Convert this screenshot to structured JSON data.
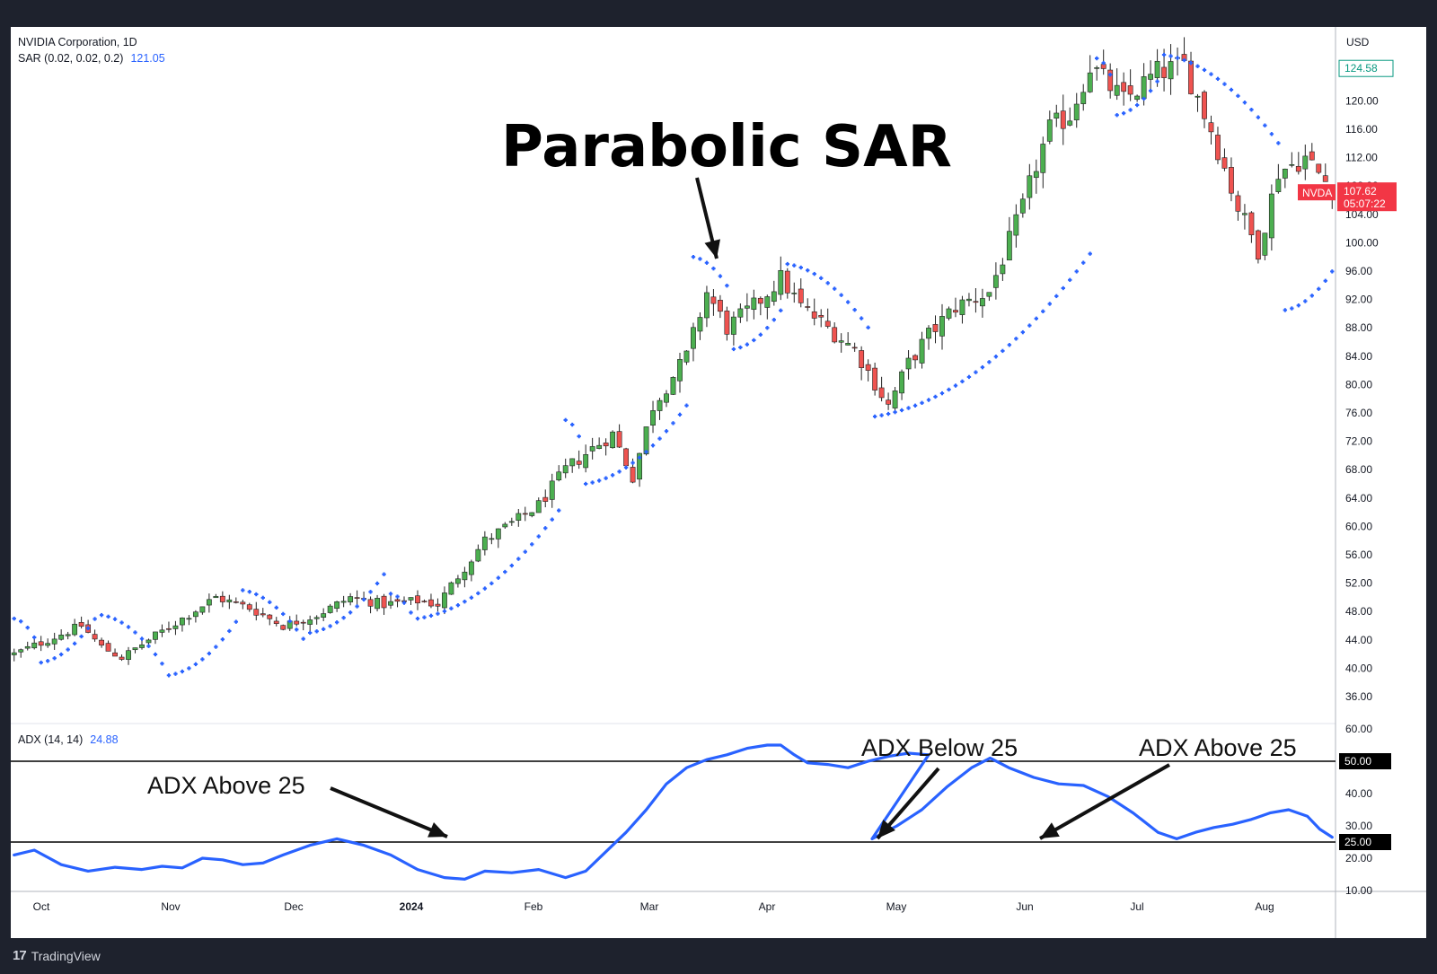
{
  "legend": {
    "symbol": "NVIDIA Corporation, 1D",
    "sar_label": "SAR (0.02, 0.02, 0.2)",
    "sar_value": "121.05",
    "adx_label": "ADX (14, 14)",
    "adx_value": "24.88"
  },
  "footer": {
    "brand": "TradingView"
  },
  "chart_data": [
    {
      "type": "candlestick",
      "title": "",
      "currency": "USD",
      "x_tick_labels": [
        "Oct",
        "Nov",
        "Dec",
        "2024",
        "Feb",
        "Mar",
        "Apr",
        "May",
        "Jun",
        "Jul",
        "Aug"
      ],
      "y_tick_labels": [
        "36.00",
        "40.00",
        "44.00",
        "48.00",
        "52.00",
        "56.00",
        "60.00",
        "64.00",
        "68.00",
        "72.00",
        "76.00",
        "80.00",
        "84.00",
        "88.00",
        "92.00",
        "96.00",
        "100.00",
        "104.00",
        "108.00",
        "112.00",
        "116.00",
        "120.00"
      ],
      "ylim": [
        32,
        127
      ],
      "price_badges": [
        {
          "value": "124.58",
          "color": "#089981",
          "style": "outline"
        },
        {
          "ticker": "NVDA",
          "value": "107.62",
          "countdown": "05:07:22",
          "color": "#f23645",
          "style": "filled"
        }
      ],
      "sar_color": "#2962ff",
      "up_color": "#4caf50",
      "down_color": "#ef5350",
      "close_path": [
        [
          0,
          42
        ],
        [
          5,
          44
        ],
        [
          10,
          46
        ],
        [
          13,
          43
        ],
        [
          16,
          41.5
        ],
        [
          20,
          44
        ],
        [
          25,
          47
        ],
        [
          30,
          50
        ],
        [
          35,
          48.5
        ],
        [
          40,
          46
        ],
        [
          45,
          47.5
        ],
        [
          50,
          50
        ],
        [
          55,
          49
        ],
        [
          60,
          49.5
        ],
        [
          63,
          49
        ],
        [
          66,
          53
        ],
        [
          70,
          58
        ],
        [
          75,
          61
        ],
        [
          78,
          63
        ],
        [
          82,
          68
        ],
        [
          86,
          71
        ],
        [
          89,
          73
        ],
        [
          92,
          67
        ],
        [
          95,
          77
        ],
        [
          100,
          84
        ],
        [
          103,
          93
        ],
        [
          106,
          88
        ],
        [
          110,
          91
        ],
        [
          114,
          95
        ],
        [
          117,
          91
        ],
        [
          121,
          88
        ],
        [
          125,
          85
        ],
        [
          130,
          77
        ],
        [
          133,
          83
        ],
        [
          136,
          87
        ],
        [
          140,
          91
        ],
        [
          145,
          93
        ],
        [
          150,
          105
        ],
        [
          152,
          111
        ],
        [
          154,
          116
        ],
        [
          157,
          118
        ],
        [
          160,
          125
        ],
        [
          165,
          120
        ],
        [
          170,
          124
        ],
        [
          174,
          125
        ],
        [
          178,
          116
        ],
        [
          182,
          105
        ],
        [
          185,
          99
        ],
        [
          188,
          110
        ],
        [
          192,
          112
        ],
        [
          196,
          107.6
        ]
      ],
      "sar_segments": [
        {
          "from": 0,
          "to": 3,
          "start": 47,
          "dir": "down"
        },
        {
          "from": 4,
          "to": 12,
          "start": 40.8,
          "dir": "up"
        },
        {
          "from": 13,
          "to": 22,
          "start": 47.5,
          "dir": "down"
        },
        {
          "from": 23,
          "to": 33,
          "start": 39,
          "dir": "up"
        },
        {
          "from": 34,
          "to": 43,
          "start": 51,
          "dir": "down"
        },
        {
          "from": 44,
          "to": 55,
          "start": 45,
          "dir": "up"
        },
        {
          "from": 56,
          "to": 59,
          "start": 50.5,
          "dir": "down"
        },
        {
          "from": 60,
          "to": 81,
          "start": 47,
          "dir": "up"
        },
        {
          "from": 82,
          "to": 84,
          "start": 75,
          "dir": "down"
        },
        {
          "from": 85,
          "to": 100,
          "start": 66,
          "dir": "up"
        },
        {
          "from": 101,
          "to": 106,
          "start": 98,
          "dir": "down"
        },
        {
          "from": 107,
          "to": 114,
          "start": 85,
          "dir": "up"
        },
        {
          "from": 115,
          "to": 127,
          "start": 97,
          "dir": "down"
        },
        {
          "from": 128,
          "to": 160,
          "start": 75.5,
          "dir": "up"
        },
        {
          "from": 161,
          "to": 163,
          "start": 126,
          "dir": "down"
        },
        {
          "from": 164,
          "to": 170,
          "start": 118,
          "dir": "up"
        },
        {
          "from": 171,
          "to": 188,
          "start": 126.5,
          "dir": "down"
        },
        {
          "from": 189,
          "to": 196,
          "start": 90.5,
          "dir": "up"
        }
      ]
    },
    {
      "type": "line",
      "title": "",
      "y_tick_labels": [
        "10.00",
        "20.00",
        "30.00",
        "40.00",
        "50.00",
        "60.00"
      ],
      "ylim": [
        9,
        60.5
      ],
      "reference_lines": [
        {
          "value": 50,
          "label": "50.00"
        },
        {
          "value": 25,
          "label": "25.00"
        }
      ],
      "line_color": "#2962ff",
      "adx_path": [
        [
          0,
          21
        ],
        [
          3,
          22.5
        ],
        [
          7,
          18
        ],
        [
          11,
          16
        ],
        [
          15,
          17.2
        ],
        [
          19,
          16.5
        ],
        [
          22,
          17.5
        ],
        [
          25,
          17
        ],
        [
          28,
          20
        ],
        [
          31,
          19.5
        ],
        [
          34,
          18
        ],
        [
          37,
          18.5
        ],
        [
          40,
          21
        ],
        [
          44,
          24
        ],
        [
          48,
          26
        ],
        [
          52,
          24
        ],
        [
          56,
          21
        ],
        [
          60,
          16.5
        ],
        [
          64,
          14
        ],
        [
          67,
          13.5
        ],
        [
          70,
          16
        ],
        [
          74,
          15.5
        ],
        [
          78,
          16.5
        ],
        [
          82,
          14
        ],
        [
          85,
          16
        ],
        [
          88,
          22
        ],
        [
          91,
          28
        ],
        [
          94,
          35
        ],
        [
          97,
          43
        ],
        [
          100,
          48
        ],
        [
          103,
          50.5
        ],
        [
          106,
          52
        ],
        [
          109,
          54
        ],
        [
          112,
          55
        ],
        [
          114,
          55
        ],
        [
          116,
          52
        ],
        [
          118,
          49.5
        ],
        [
          121,
          49
        ],
        [
          124,
          48
        ],
        [
          127,
          50
        ],
        [
          130,
          51.5
        ],
        [
          133,
          52.5
        ],
        [
          136,
          52
        ],
        [
          139,
          51
        ],
        [
          142,
          51.5
        ],
        [
          145,
          49
        ],
        [
          148,
          44
        ],
        [
          151,
          38
        ],
        [
          154,
          32
        ],
        [
          157,
          27
        ],
        [
          160,
          25
        ],
        [
          162,
          25.8
        ],
        [
          165,
          24
        ],
        [
          168,
          21
        ],
        [
          171,
          18.5
        ],
        [
          174,
          17
        ],
        [
          177,
          15
        ],
        [
          180,
          13.5
        ],
        [
          183,
          14.5
        ],
        [
          186,
          14
        ],
        [
          189,
          20
        ],
        [
          192,
          26
        ]
      ],
      "adx_path_2": [
        [
          138,
          26
        ],
        [
          142,
          30
        ],
        [
          146,
          35
        ],
        [
          150,
          42
        ],
        [
          154,
          48
        ],
        [
          157,
          51
        ],
        [
          160,
          48
        ],
        [
          164,
          45
        ],
        [
          168,
          43
        ],
        [
          172,
          42.5
        ],
        [
          176,
          39
        ],
        [
          180,
          34
        ],
        [
          184,
          28
        ],
        [
          187,
          26
        ],
        [
          190,
          28
        ],
        [
          193,
          29.5
        ],
        [
          196,
          30.5
        ],
        [
          199,
          32
        ],
        [
          202,
          34
        ],
        [
          205,
          35
        ],
        [
          208,
          33
        ],
        [
          210,
          29
        ],
        [
          212,
          26.5
        ]
      ]
    }
  ],
  "annotations": {
    "parabolic_sar": "Parabolic SAR",
    "adx_above_left": "ADX Above 25",
    "adx_below": "ADX Below 25",
    "adx_above_right": "ADX Above 25"
  }
}
